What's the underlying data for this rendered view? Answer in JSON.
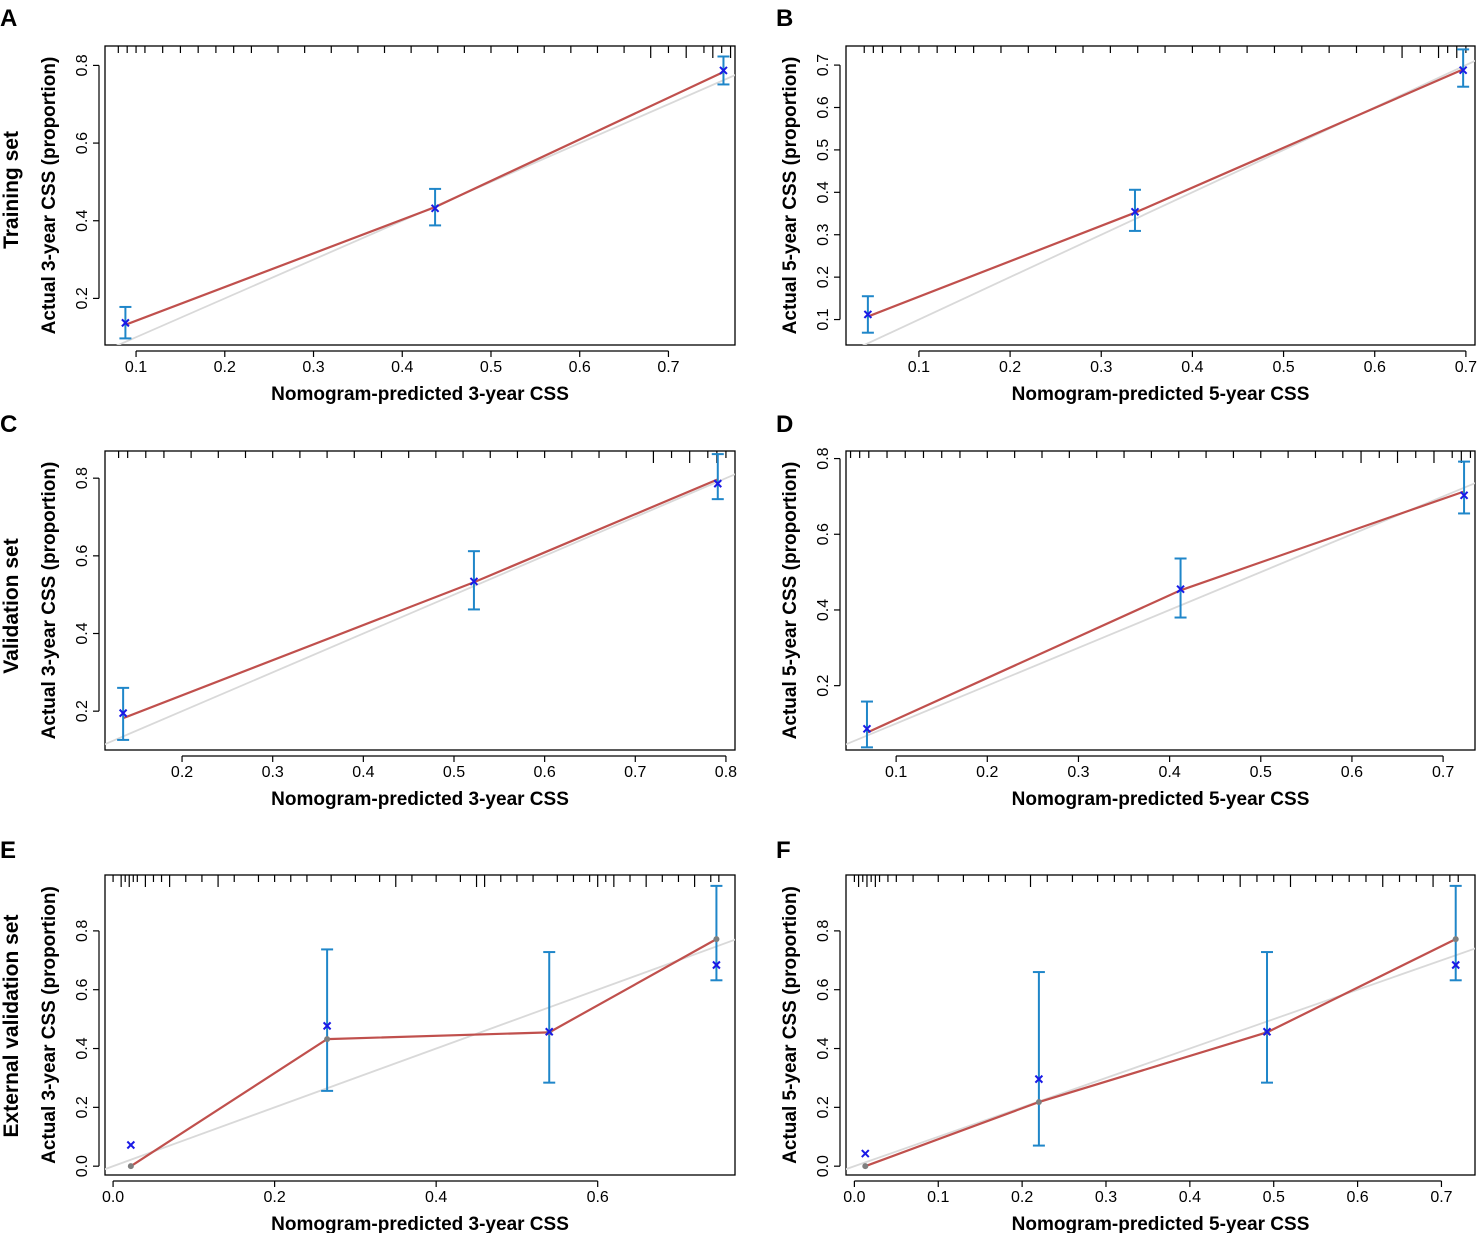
{
  "colors": {
    "fit": "#C0504D",
    "ideal": "#D9D9D9",
    "errorbar": "#1F86C9",
    "corrected": "#1A1AE6",
    "point": "#7F7F7F",
    "axis": "#000000"
  },
  "row_labels": [
    "Training set",
    "Validation set",
    "External validation set"
  ],
  "chart_data": [
    {
      "type": "line",
      "panel": "A",
      "xlabel": "Nomogram-predicted 3-year CSS",
      "ylabel": "Actual 3-year CSS (proportion)",
      "xlim": [
        0.065,
        0.775
      ],
      "ylim": [
        0.08,
        0.85
      ],
      "xticks": [
        0.1,
        0.2,
        0.3,
        0.4,
        0.5,
        0.6,
        0.7
      ],
      "xtick_labels": [
        "0.1",
        "0.2",
        "0.3",
        "0.4",
        "0.5",
        "0.6",
        "0.7"
      ],
      "yticks": [
        0.2,
        0.4,
        0.6,
        0.8
      ],
      "ytick_labels": [
        "0.2",
        "0.4",
        "0.6",
        "0.8"
      ],
      "x": [
        0.088,
        0.437,
        0.762
      ],
      "fit": [
        0.132,
        0.435,
        0.783
      ],
      "corrected": [
        0.137,
        0.432,
        0.787
      ],
      "ci_low": [
        0.097,
        0.388,
        0.751
      ],
      "ci_high": [
        0.178,
        0.482,
        0.823
      ],
      "show_points": false,
      "rug": [
        0.08,
        0.09,
        0.1,
        0.11,
        0.13,
        0.15,
        0.17,
        0.19,
        0.21,
        0.23,
        0.26,
        0.29,
        0.32,
        0.35,
        0.38,
        0.41,
        0.44,
        0.47,
        0.5,
        0.53,
        0.56,
        0.59,
        0.62,
        0.65,
        0.68,
        0.7,
        0.72,
        0.74,
        0.75,
        0.76,
        0.77
      ],
      "rug_long": [
        0.68,
        0.72,
        0.75,
        0.77
      ]
    },
    {
      "type": "line",
      "panel": "B",
      "xlabel": "Nomogram-predicted 5-year CSS",
      "ylabel": "Actual 5-year CSS (proportion)",
      "xlim": [
        0.02,
        0.71
      ],
      "ylim": [
        0.04,
        0.745
      ],
      "xticks": [
        0.1,
        0.2,
        0.3,
        0.4,
        0.5,
        0.6,
        0.7
      ],
      "xtick_labels": [
        "0.1",
        "0.2",
        "0.3",
        "0.4",
        "0.5",
        "0.6",
        "0.7"
      ],
      "yticks": [
        0.1,
        0.2,
        0.3,
        0.4,
        0.5,
        0.6,
        0.7
      ],
      "ytick_labels": [
        "0.1",
        "0.2",
        "0.3",
        "0.4",
        "0.5",
        "0.6",
        "0.7"
      ],
      "x": [
        0.044,
        0.337,
        0.697
      ],
      "fit": [
        0.107,
        0.352,
        0.69
      ],
      "corrected": [
        0.112,
        0.354,
        0.688
      ],
      "ci_low": [
        0.069,
        0.309,
        0.649
      ],
      "ci_high": [
        0.155,
        0.406,
        0.737
      ],
      "show_points": false,
      "rug": [
        0.04,
        0.05,
        0.06,
        0.08,
        0.1,
        0.12,
        0.14,
        0.16,
        0.19,
        0.22,
        0.25,
        0.28,
        0.31,
        0.34,
        0.37,
        0.4,
        0.43,
        0.46,
        0.49,
        0.52,
        0.55,
        0.58,
        0.61,
        0.63,
        0.65,
        0.67,
        0.68,
        0.69,
        0.7
      ],
      "rug_long": [
        0.63,
        0.67,
        0.69
      ]
    },
    {
      "type": "line",
      "panel": "C",
      "xlabel": "Nomogram-predicted 3-year CSS",
      "ylabel": "Actual 3-year CSS (proportion)",
      "xlim": [
        0.115,
        0.81
      ],
      "ylim": [
        0.1,
        0.87
      ],
      "xticks": [
        0.2,
        0.3,
        0.4,
        0.5,
        0.6,
        0.7,
        0.8
      ],
      "xtick_labels": [
        "0.2",
        "0.3",
        "0.4",
        "0.5",
        "0.6",
        "0.7",
        "0.8"
      ],
      "yticks": [
        0.2,
        0.4,
        0.6,
        0.8
      ],
      "ytick_labels": [
        "0.2",
        "0.4",
        "0.6",
        "0.8"
      ],
      "x": [
        0.135,
        0.522,
        0.791
      ],
      "fit": [
        0.182,
        0.532,
        0.797
      ],
      "corrected": [
        0.195,
        0.534,
        0.786
      ],
      "ci_low": [
        0.126,
        0.462,
        0.746
      ],
      "ci_high": [
        0.26,
        0.612,
        0.862
      ],
      "show_points": false,
      "rug": [
        0.13,
        0.14,
        0.16,
        0.18,
        0.21,
        0.24,
        0.27,
        0.3,
        0.33,
        0.36,
        0.39,
        0.42,
        0.45,
        0.48,
        0.51,
        0.54,
        0.57,
        0.6,
        0.63,
        0.66,
        0.69,
        0.72,
        0.74,
        0.76,
        0.78,
        0.79,
        0.8
      ],
      "rug_long": [
        0.72,
        0.76,
        0.79
      ]
    },
    {
      "type": "line",
      "panel": "D",
      "xlabel": "Nomogram-predicted 5-year CSS",
      "ylabel": "Actual 5-year CSS (proportion)",
      "xlim": [
        0.045,
        0.735
      ],
      "ylim": [
        0.03,
        0.82
      ],
      "xticks": [
        0.1,
        0.2,
        0.3,
        0.4,
        0.5,
        0.6,
        0.7
      ],
      "xtick_labels": [
        "0.1",
        "0.2",
        "0.3",
        "0.4",
        "0.5",
        "0.6",
        "0.7"
      ],
      "yticks": [
        0.2,
        0.4,
        0.6,
        0.8
      ],
      "ytick_labels": [
        "0.2",
        "0.4",
        "0.6",
        "0.8"
      ],
      "x": [
        0.068,
        0.412,
        0.723
      ],
      "fit": [
        0.076,
        0.452,
        0.713
      ],
      "corrected": [
        0.086,
        0.455,
        0.703
      ],
      "ci_low": [
        0.037,
        0.38,
        0.655
      ],
      "ci_high": [
        0.158,
        0.536,
        0.792
      ],
      "show_points": false,
      "rug": [
        0.05,
        0.06,
        0.07,
        0.09,
        0.11,
        0.13,
        0.15,
        0.17,
        0.2,
        0.23,
        0.26,
        0.29,
        0.32,
        0.35,
        0.38,
        0.41,
        0.44,
        0.47,
        0.5,
        0.53,
        0.56,
        0.59,
        0.61,
        0.63,
        0.65,
        0.67,
        0.69,
        0.71,
        0.72,
        0.73
      ],
      "rug_long": [
        0.61,
        0.65,
        0.69,
        0.72
      ]
    },
    {
      "type": "line",
      "panel": "E",
      "xlabel": "Nomogram-predicted 3-year CSS",
      "ylabel": "Actual 3-year CSS (proportion)",
      "xlim": [
        -0.01,
        0.77
      ],
      "ylim": [
        -0.03,
        0.99
      ],
      "xticks": [
        0.0,
        0.2,
        0.4,
        0.6
      ],
      "xtick_labels": [
        "0.0",
        "0.2",
        "0.4",
        "0.6"
      ],
      "yticks": [
        0.0,
        0.2,
        0.4,
        0.6,
        0.8
      ],
      "ytick_labels": [
        "0.0",
        "0.2",
        "0.4",
        "0.6",
        "0.8"
      ],
      "x": [
        0.022,
        0.265,
        0.54,
        0.747
      ],
      "fit": [
        0.0,
        0.432,
        0.455,
        0.772
      ],
      "corrected": [
        0.072,
        0.477,
        0.457,
        0.684
      ],
      "ci_low": [
        null,
        0.256,
        0.284,
        0.632
      ],
      "ci_high": [
        null,
        0.737,
        0.728,
        0.953
      ],
      "show_points": true,
      "rug": [
        0.0,
        0.01,
        0.015,
        0.02,
        0.025,
        0.03,
        0.04,
        0.05,
        0.06,
        0.07,
        0.09,
        0.11,
        0.13,
        0.15,
        0.18,
        0.2,
        0.22,
        0.24,
        0.27,
        0.3,
        0.33,
        0.35,
        0.37,
        0.4,
        0.43,
        0.45,
        0.46,
        0.48,
        0.5,
        0.52,
        0.55,
        0.57,
        0.59,
        0.6,
        0.61,
        0.62,
        0.64,
        0.66,
        0.68,
        0.7,
        0.72,
        0.74,
        0.75
      ],
      "rug_long": [
        0.01,
        0.02,
        0.04,
        0.07,
        0.13,
        0.35,
        0.45,
        0.46,
        0.6,
        0.62,
        0.66,
        0.72
      ]
    },
    {
      "type": "line",
      "panel": "F",
      "xlabel": "Nomogram-predicted 5-year CSS",
      "ylabel": "Actual 5-year CSS (proportion)",
      "xlim": [
        -0.01,
        0.74
      ],
      "ylim": [
        -0.03,
        0.99
      ],
      "xticks": [
        0.0,
        0.1,
        0.2,
        0.3,
        0.4,
        0.5,
        0.6,
        0.7
      ],
      "xtick_labels": [
        "0.0",
        "0.1",
        "0.2",
        "0.3",
        "0.4",
        "0.5",
        "0.6",
        "0.7"
      ],
      "yticks": [
        0.0,
        0.2,
        0.4,
        0.6,
        0.8
      ],
      "ytick_labels": [
        "0.0",
        "0.2",
        "0.4",
        "0.6",
        "0.8"
      ],
      "x": [
        0.013,
        0.22,
        0.492,
        0.717
      ],
      "fit": [
        0.0,
        0.218,
        0.455,
        0.772
      ],
      "corrected": [
        0.043,
        0.296,
        0.457,
        0.684
      ],
      "ci_low": [
        null,
        0.07,
        0.284,
        0.632
      ],
      "ci_high": [
        null,
        0.66,
        0.728,
        0.953
      ],
      "show_points": true,
      "rug": [
        0.0,
        0.005,
        0.01,
        0.015,
        0.02,
        0.025,
        0.03,
        0.04,
        0.05,
        0.07,
        0.1,
        0.13,
        0.16,
        0.18,
        0.21,
        0.23,
        0.26,
        0.29,
        0.31,
        0.33,
        0.35,
        0.38,
        0.41,
        0.44,
        0.46,
        0.48,
        0.5,
        0.52,
        0.55,
        0.57,
        0.59,
        0.61,
        0.63,
        0.65,
        0.67,
        0.69,
        0.71,
        0.72
      ],
      "rug_long": [
        0.005,
        0.015,
        0.025,
        0.21,
        0.46,
        0.52,
        0.63,
        0.69
      ]
    }
  ]
}
